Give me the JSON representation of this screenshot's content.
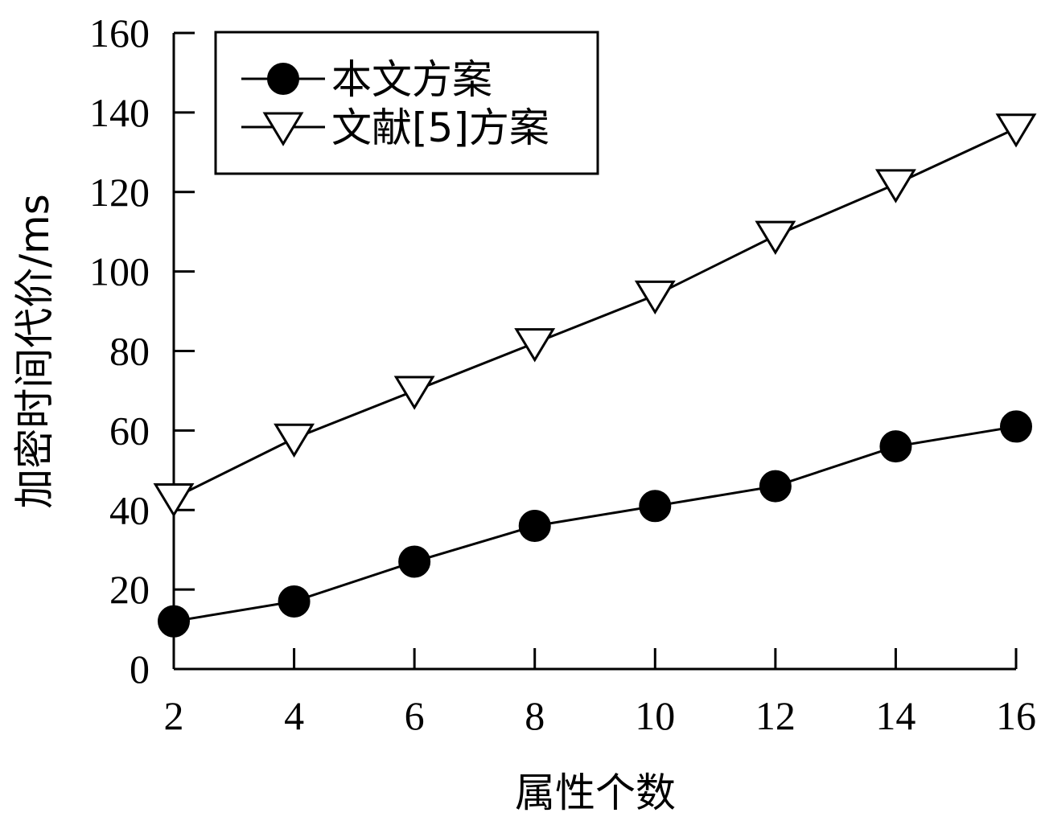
{
  "chart_data": {
    "type": "line",
    "title": "",
    "xlabel": "属性个数",
    "ylabel": "加密时间代价/ms",
    "x": [
      2,
      4,
      6,
      8,
      10,
      12,
      14,
      16
    ],
    "xlim": [
      2,
      16
    ],
    "ylim": [
      0,
      160
    ],
    "xticks": [
      2,
      4,
      6,
      8,
      10,
      12,
      14,
      16
    ],
    "yticks": [
      0,
      20,
      40,
      60,
      80,
      100,
      120,
      140,
      160
    ],
    "grid": false,
    "legend_position": "top-left",
    "series": [
      {
        "name": "本文方案",
        "marker": "filled-circle",
        "color": "#000000",
        "values": [
          12,
          17,
          27,
          36,
          41,
          46,
          56,
          61
        ]
      },
      {
        "name": "文献[5]方案",
        "marker": "open-down-triangle",
        "color": "#000000",
        "values": [
          43,
          58,
          70,
          82,
          94,
          109,
          122,
          136
        ]
      }
    ]
  }
}
